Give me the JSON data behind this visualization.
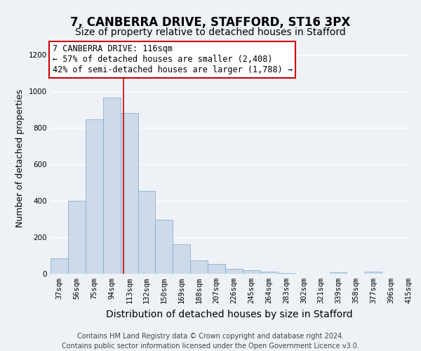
{
  "title_line1": "7, CANBERRA DRIVE, STAFFORD, ST16 3PX",
  "title_line2": "Size of property relative to detached houses in Stafford",
  "xlabel": "Distribution of detached houses by size in Stafford",
  "ylabel": "Number of detached properties",
  "footnote_line1": "Contains HM Land Registry data © Crown copyright and database right 2024.",
  "footnote_line2": "Contains public sector information licensed under the Open Government Licence v3.0.",
  "annotation_title": "7 CANBERRA DRIVE: 116sqm",
  "annotation_line1": "← 57% of detached houses are smaller (2,408)",
  "annotation_line2": "42% of semi-detached houses are larger (1,788) →",
  "bar_left_edges": [
    37,
    56,
    75,
    94,
    113,
    132,
    150,
    169,
    188,
    207,
    226,
    245,
    264,
    283,
    302,
    321,
    339,
    358,
    377,
    396
  ],
  "bar_widths": [
    19,
    19,
    19,
    19,
    19,
    18,
    19,
    19,
    19,
    19,
    19,
    19,
    19,
    19,
    19,
    18,
    19,
    19,
    19,
    19
  ],
  "bar_heights": [
    85,
    400,
    845,
    965,
    880,
    455,
    297,
    160,
    75,
    52,
    28,
    18,
    10,
    5,
    0,
    0,
    8,
    0,
    10,
    0
  ],
  "bar_labels": [
    "37sqm",
    "56sqm",
    "75sqm",
    "94sqm",
    "113sqm",
    "132sqm",
    "150sqm",
    "169sqm",
    "188sqm",
    "207sqm",
    "226sqm",
    "245sqm",
    "264sqm",
    "283sqm",
    "302sqm",
    "321sqm",
    "339sqm",
    "358sqm",
    "377sqm",
    "396sqm",
    "415sqm"
  ],
  "bar_color": "#ccdaea",
  "bar_edge_color": "#8ab0cc",
  "vline_color": "#cc0000",
  "vline_x": 116,
  "ylim": [
    0,
    1270
  ],
  "yticks": [
    0,
    200,
    400,
    600,
    800,
    1000,
    1200
  ],
  "bg_color": "#eef2f7",
  "grid_color": "#ffffff",
  "annotation_box_color": "#ffffff",
  "annotation_box_edge": "#cc0000",
  "title_fontsize": 12,
  "subtitle_fontsize": 10,
  "xlabel_fontsize": 10,
  "ylabel_fontsize": 9,
  "tick_fontsize": 7.5,
  "annotation_fontsize": 8.5,
  "footnote_fontsize": 7
}
